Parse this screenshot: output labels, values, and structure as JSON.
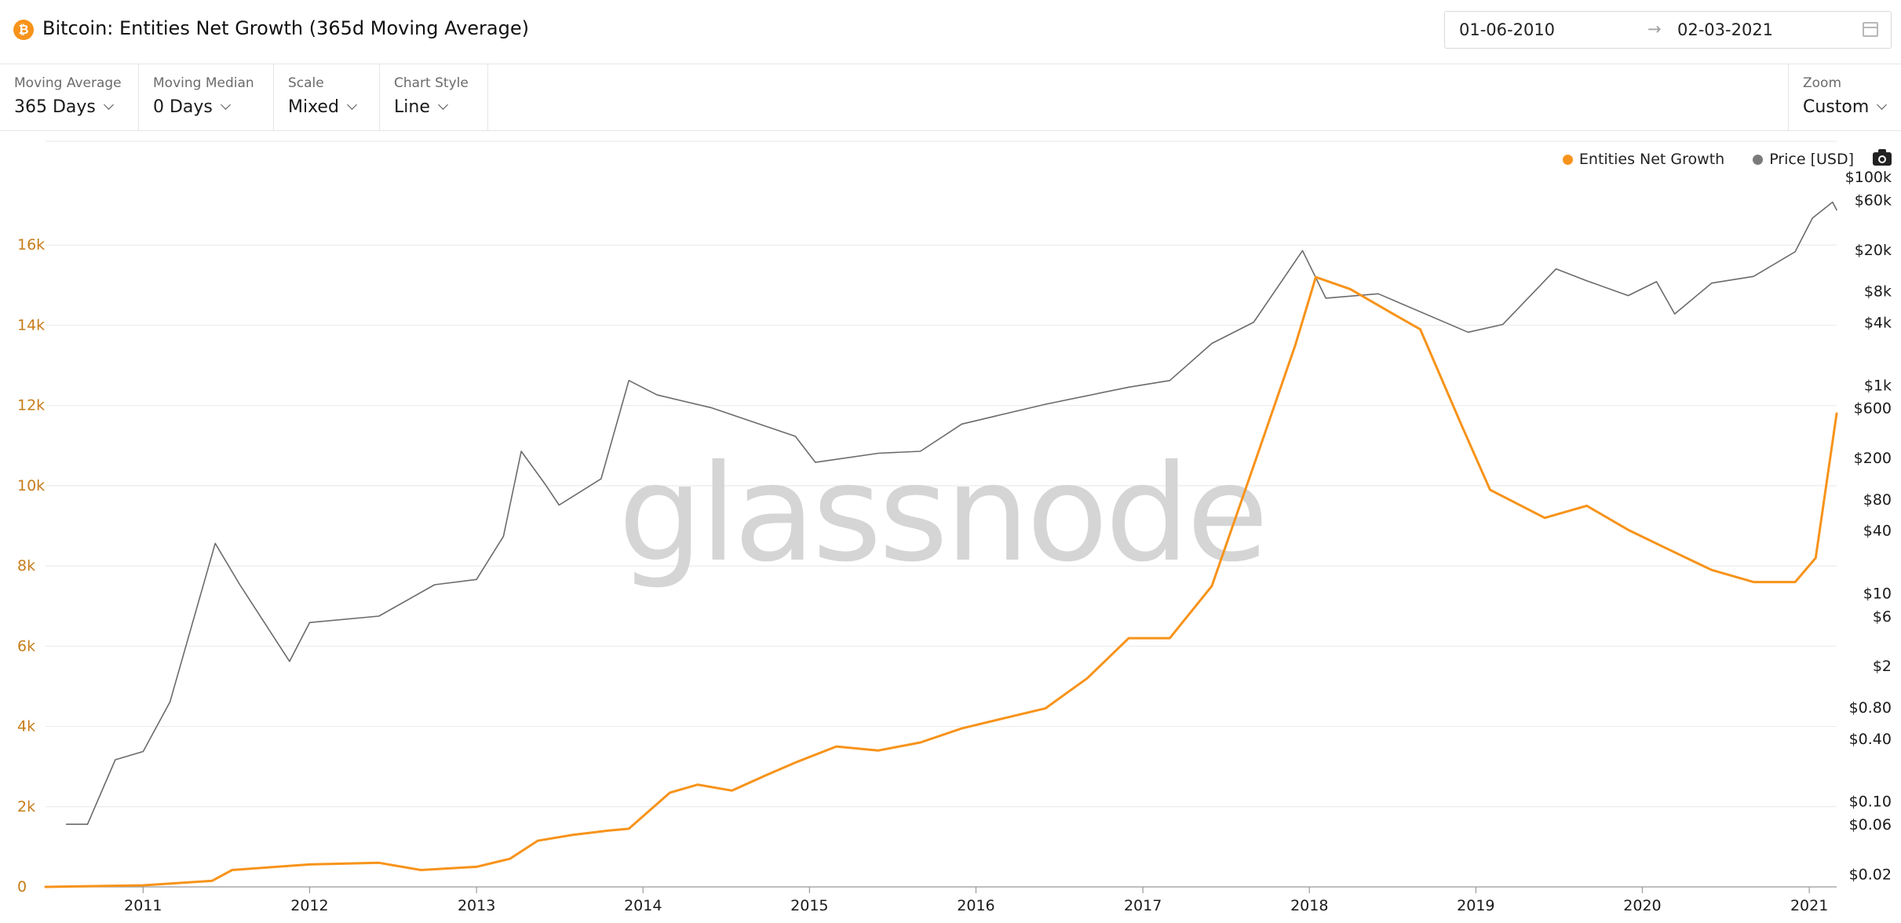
{
  "header": {
    "title": "Bitcoin: Entities Net Growth (365d Moving Average)",
    "logo_glyph": "₿",
    "date_start": "01-06-2010",
    "date_end": "02-03-2021",
    "date_separator": "→"
  },
  "toolbar": {
    "moving_average": {
      "label": "Moving Average",
      "value": "365 Days"
    },
    "moving_median": {
      "label": "Moving Median",
      "value": "0 Days"
    },
    "scale": {
      "label": "Scale",
      "value": "Mixed"
    },
    "chart_style": {
      "label": "Chart Style",
      "value": "Line"
    },
    "zoom": {
      "label": "Zoom",
      "value": "Custom"
    }
  },
  "colors": {
    "entities": "#f7931a",
    "price": "#6b6b6b",
    "left_axis_text": "#c77c1a",
    "grid": "#ececec"
  },
  "icons": [
    "bitcoin-logo-icon",
    "arrow-right-icon",
    "calendar-icon",
    "chevron-down-icon",
    "camera-icon"
  ],
  "watermark": "glassnode",
  "chart_data": {
    "type": "line",
    "title": "Bitcoin: Entities Net Growth (365d Moving Average)",
    "legend": {
      "position": "top-right",
      "entries": [
        "Entities Net Growth",
        "Price [USD]"
      ]
    },
    "grid": true,
    "x_range": [
      "2010-06-01",
      "2021-03-02"
    ],
    "x_ticks": [
      "2011",
      "2012",
      "2013",
      "2014",
      "2015",
      "2016",
      "2017",
      "2018",
      "2019",
      "2020",
      "2021"
    ],
    "y_left": {
      "scale": "linear",
      "range": [
        0,
        18000
      ],
      "ticks": [
        0,
        2000,
        4000,
        6000,
        8000,
        10000,
        12000,
        14000,
        16000
      ],
      "tick_labels": [
        "0",
        "2k",
        "4k",
        "6k",
        "8k",
        "10k",
        "12k",
        "14k",
        "16k"
      ]
    },
    "y_right": {
      "scale": "log",
      "range": [
        0.015,
        130000
      ],
      "ticks": [
        0.02,
        0.06,
        0.1,
        0.4,
        0.8,
        2,
        6,
        10,
        40,
        80,
        200,
        600,
        1000,
        4000,
        8000,
        20000,
        60000,
        100000
      ],
      "tick_labels": [
        "$0.02",
        "$0.06",
        "$0.10",
        "$0.40",
        "$0.80",
        "$2",
        "$6",
        "$10",
        "$40",
        "$80",
        "$200",
        "$600",
        "$1k",
        "$4k",
        "$8k",
        "$20k",
        "$60k",
        "$100k"
      ]
    },
    "series": [
      {
        "name": "Entities Net Growth",
        "axis": "left",
        "points": [
          [
            "2010-06-01",
            0
          ],
          [
            "2011-01-01",
            40
          ],
          [
            "2011-06-01",
            150
          ],
          [
            "2011-07-15",
            420
          ],
          [
            "2012-01-01",
            560
          ],
          [
            "2012-06-01",
            600
          ],
          [
            "2012-09-01",
            420
          ],
          [
            "2013-01-01",
            500
          ],
          [
            "2013-03-15",
            700
          ],
          [
            "2013-05-15",
            1150
          ],
          [
            "2013-08-01",
            1300
          ],
          [
            "2013-10-15",
            1400
          ],
          [
            "2013-12-01",
            1450
          ],
          [
            "2014-03-01",
            2350
          ],
          [
            "2014-05-01",
            2550
          ],
          [
            "2014-07-15",
            2400
          ],
          [
            "2014-10-01",
            2800
          ],
          [
            "2014-12-01",
            3100
          ],
          [
            "2015-03-01",
            3500
          ],
          [
            "2015-06-01",
            3400
          ],
          [
            "2015-09-01",
            3600
          ],
          [
            "2015-12-01",
            3950
          ],
          [
            "2016-03-01",
            4200
          ],
          [
            "2016-06-01",
            4450
          ],
          [
            "2016-09-01",
            5200
          ],
          [
            "2016-12-01",
            6200
          ],
          [
            "2017-03-01",
            6200
          ],
          [
            "2017-06-01",
            7500
          ],
          [
            "2017-09-01",
            10500
          ],
          [
            "2017-12-01",
            13500
          ],
          [
            "2018-01-15",
            15200
          ],
          [
            "2018-04-01",
            14900
          ],
          [
            "2018-07-01",
            14300
          ],
          [
            "2018-09-01",
            13900
          ],
          [
            "2018-12-01",
            11500
          ],
          [
            "2019-02-01",
            9900
          ],
          [
            "2019-06-01",
            9200
          ],
          [
            "2019-09-01",
            9500
          ],
          [
            "2019-12-01",
            8900
          ],
          [
            "2020-03-01",
            8400
          ],
          [
            "2020-06-01",
            7900
          ],
          [
            "2020-09-01",
            7600
          ],
          [
            "2020-12-01",
            7600
          ],
          [
            "2021-01-15",
            8200
          ],
          [
            "2021-03-02",
            11800
          ]
        ]
      },
      {
        "name": "Price [USD]",
        "axis": "right",
        "points": [
          [
            "2010-07-17",
            0.06
          ],
          [
            "2010-09-01",
            0.06
          ],
          [
            "2010-11-01",
            0.25
          ],
          [
            "2011-01-01",
            0.3
          ],
          [
            "2011-03-01",
            0.9
          ],
          [
            "2011-06-08",
            30
          ],
          [
            "2011-08-01",
            12
          ],
          [
            "2011-11-18",
            2.2
          ],
          [
            "2012-01-01",
            5.2
          ],
          [
            "2012-06-01",
            6
          ],
          [
            "2012-10-01",
            12
          ],
          [
            "2013-01-01",
            13.5
          ],
          [
            "2013-03-01",
            35
          ],
          [
            "2013-04-09",
            230
          ],
          [
            "2013-06-01",
            110
          ],
          [
            "2013-07-01",
            70
          ],
          [
            "2013-10-01",
            125
          ],
          [
            "2013-12-01",
            1100
          ],
          [
            "2014-02-01",
            800
          ],
          [
            "2014-06-01",
            600
          ],
          [
            "2014-12-01",
            320
          ],
          [
            "2015-01-14",
            180
          ],
          [
            "2015-06-01",
            220
          ],
          [
            "2015-09-01",
            230
          ],
          [
            "2015-12-01",
            420
          ],
          [
            "2016-06-01",
            650
          ],
          [
            "2016-12-01",
            950
          ],
          [
            "2017-03-01",
            1100
          ],
          [
            "2017-06-01",
            2500
          ],
          [
            "2017-09-01",
            4000
          ],
          [
            "2017-12-17",
            19500
          ],
          [
            "2018-02-06",
            6800
          ],
          [
            "2018-06-01",
            7500
          ],
          [
            "2018-12-15",
            3200
          ],
          [
            "2019-03-01",
            3800
          ],
          [
            "2019-06-26",
            13000
          ],
          [
            "2019-09-01",
            10000
          ],
          [
            "2019-12-01",
            7200
          ],
          [
            "2020-02-01",
            9800
          ],
          [
            "2020-03-12",
            4800
          ],
          [
            "2020-06-01",
            9500
          ],
          [
            "2020-09-01",
            11000
          ],
          [
            "2020-12-01",
            19000
          ],
          [
            "2021-01-08",
            40000
          ],
          [
            "2021-02-21",
            57000
          ],
          [
            "2021-03-02",
            48000
          ]
        ]
      }
    ]
  }
}
